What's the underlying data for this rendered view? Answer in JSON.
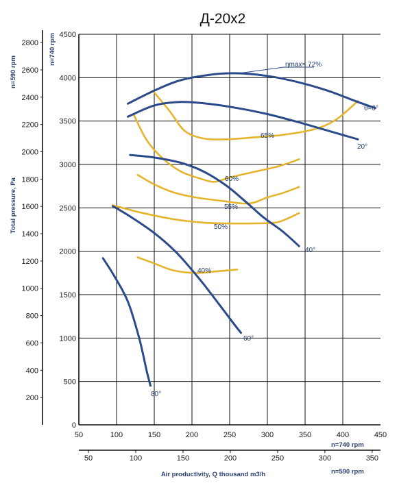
{
  "chart_data": {
    "type": "line",
    "title": "Д-20х2",
    "ylabel_total": "Total pressure, Pa",
    "ylabel_740": "n=740 rpm",
    "ylabel_590": "n=590 rpm",
    "xlabel": "Air productivity, Q thousand m3/h",
    "x740_label": "n=740 rpm",
    "x590_label": "n=590 rpm",
    "x740_range": [
      50,
      450
    ],
    "y740_range": [
      0,
      4500
    ],
    "x740_ticks": [
      "50",
      "100",
      "150",
      "200",
      "250",
      "300",
      "350",
      "400",
      "450"
    ],
    "y740_ticks": [
      "0",
      "500",
      "1000",
      "1500",
      "2000",
      "2500",
      "3000",
      "3500",
      "4000",
      "4500"
    ],
    "x590_ticks": [
      "50",
      "100",
      "150",
      "200",
      "250",
      "300",
      "350"
    ],
    "y590_ticks": [
      "200",
      "400",
      "600",
      "800",
      "1000",
      "1200",
      "1400",
      "1600",
      "1800",
      "2000",
      "2200",
      "2400",
      "2600",
      "2800"
    ],
    "grid": true,
    "series": [
      {
        "name": "θ=0°",
        "kind": "pressure",
        "x": [
          115,
          150,
          185,
          230,
          262,
          300,
          340,
          380,
          420,
          443
        ],
        "y": [
          3700,
          3850,
          3970,
          4040,
          4050,
          4020,
          3950,
          3850,
          3720,
          3650
        ]
      },
      {
        "name": "20°",
        "kind": "pressure",
        "x": [
          115,
          150,
          185,
          220,
          260,
          300,
          340,
          380,
          420
        ],
        "y": [
          3550,
          3680,
          3720,
          3700,
          3650,
          3580,
          3490,
          3390,
          3290
        ]
      },
      {
        "name": "40°",
        "kind": "pressure",
        "x": [
          118,
          150,
          185,
          215,
          245,
          270,
          295,
          320,
          342
        ],
        "y": [
          3110,
          3080,
          3020,
          2920,
          2760,
          2580,
          2390,
          2230,
          2060
        ]
      },
      {
        "name": "60°",
        "kind": "pressure",
        "x": [
          95,
          120,
          150,
          180,
          210,
          235,
          255,
          265
        ],
        "y": [
          2520,
          2390,
          2210,
          1980,
          1680,
          1400,
          1170,
          1060
        ]
      },
      {
        "name": "80°",
        "kind": "pressure",
        "x": [
          82,
          98,
          115,
          130,
          140,
          145
        ],
        "y": [
          1920,
          1700,
          1420,
          1000,
          620,
          450
        ]
      },
      {
        "name": "ηmax= 72%",
        "kind": "efficiency",
        "x": [],
        "y": []
      },
      {
        "name": "65%",
        "kind": "efficiency",
        "x": [
          148,
          170,
          190,
          215,
          245,
          280,
          320,
          360,
          390,
          420
        ],
        "y": [
          3850,
          3620,
          3390,
          3300,
          3290,
          3310,
          3340,
          3400,
          3510,
          3730
        ]
      },
      {
        "name": "60%",
        "kind": "efficiency",
        "x": [
          123,
          140,
          160,
          185,
          210,
          230,
          250,
          280,
          315,
          342
        ],
        "y": [
          3570,
          3280,
          3080,
          2920,
          2840,
          2800,
          2850,
          2910,
          2980,
          3060
        ]
      },
      {
        "name": "55%",
        "kind": "efficiency",
        "x": [
          128,
          150,
          175,
          205,
          240,
          275,
          300,
          320,
          342
        ],
        "y": [
          2880,
          2770,
          2680,
          2620,
          2580,
          2550,
          2620,
          2670,
          2740
        ]
      },
      {
        "name": "50%",
        "kind": "efficiency",
        "x": [
          95,
          130,
          175,
          215,
          250,
          280,
          310,
          325,
          342
        ],
        "y": [
          2530,
          2450,
          2370,
          2330,
          2320,
          2320,
          2330,
          2370,
          2440
        ]
      },
      {
        "name": "40%",
        "kind": "efficiency",
        "x": [
          128,
          150,
          175,
          205,
          235,
          260
        ],
        "y": [
          1930,
          1860,
          1780,
          1750,
          1770,
          1790
        ]
      }
    ],
    "annotations": [
      "ηmax= 72%",
      "θ=0°",
      "20°",
      "40°",
      "60°",
      "80°",
      "65%",
      "60%",
      "55%",
      "50%",
      "40%"
    ]
  }
}
